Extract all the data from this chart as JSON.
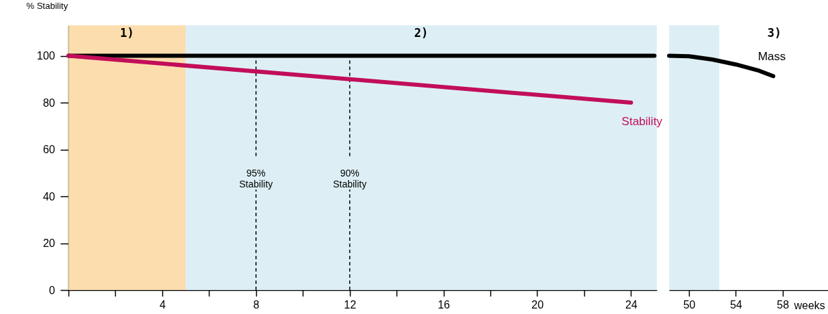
{
  "chart_data": [
    {
      "type": "line",
      "ylabel": "% Stability",
      "xlim": [
        0,
        25.1
      ],
      "ylim": [
        0,
        113
      ],
      "yticks": [
        0,
        20,
        40,
        60,
        80,
        100
      ],
      "xticks": [
        {
          "value": 0,
          "label": null
        },
        {
          "value": 2,
          "label": null
        },
        4,
        {
          "value": 6,
          "label": null
        },
        8,
        {
          "value": 10,
          "label": null
        },
        12,
        {
          "value": 14,
          "label": null
        },
        16,
        {
          "value": 18,
          "label": null
        },
        20,
        {
          "value": 22,
          "label": null
        },
        24
      ],
      "series": [
        {
          "color": "#000000",
          "x": [
            0,
            25
          ],
          "values": [
            100,
            100
          ]
        },
        {
          "name": "Stability",
          "color": "#c20e5a",
          "x": [
            0,
            24
          ],
          "values": [
            100,
            80
          ]
        }
      ],
      "ref_lines": [
        {
          "axis": "x",
          "value": 8,
          "label": "95% Stability",
          "line_style": "dashed",
          "color": "#000000"
        },
        {
          "axis": "x",
          "value": 12,
          "label": "90% Stability",
          "line_style": "dashed",
          "color": "#000000"
        }
      ],
      "bands": [
        {
          "axis": "x",
          "from": 0,
          "to": 5,
          "color": "#fcd9a4",
          "label": "1)"
        },
        {
          "axis": "x",
          "from": 5,
          "to": 25.1,
          "color": "#d9edf4",
          "label": "2)"
        }
      ],
      "grid": false,
      "marker": "none",
      "line_style": "solid"
    },
    {
      "type": "line",
      "xlabel": "weeks",
      "xlim": [
        48.3,
        62
      ],
      "ylim": [
        0,
        113
      ],
      "yticks": [
        0,
        20,
        40,
        60,
        80,
        100
      ],
      "xticks": [
        50,
        54,
        58
      ],
      "tick_labels": "x",
      "series": [
        {
          "name": "Mass",
          "color": "#000000",
          "x": [
            48.3,
            50,
            52,
            54,
            56,
            57.2
          ],
          "values": [
            100,
            99.8,
            98.4,
            96.3,
            93.6,
            91.3
          ]
        }
      ],
      "bands": [
        {
          "axis": "x",
          "from": 48.3,
          "to": 52.6,
          "color": "#d9edf4"
        },
        {
          "axis": "x",
          "from": 52.6,
          "to": 62,
          "color": "#ffffff",
          "label": "3)"
        }
      ],
      "grid": false,
      "marker": "none",
      "line_style": "solid"
    }
  ]
}
